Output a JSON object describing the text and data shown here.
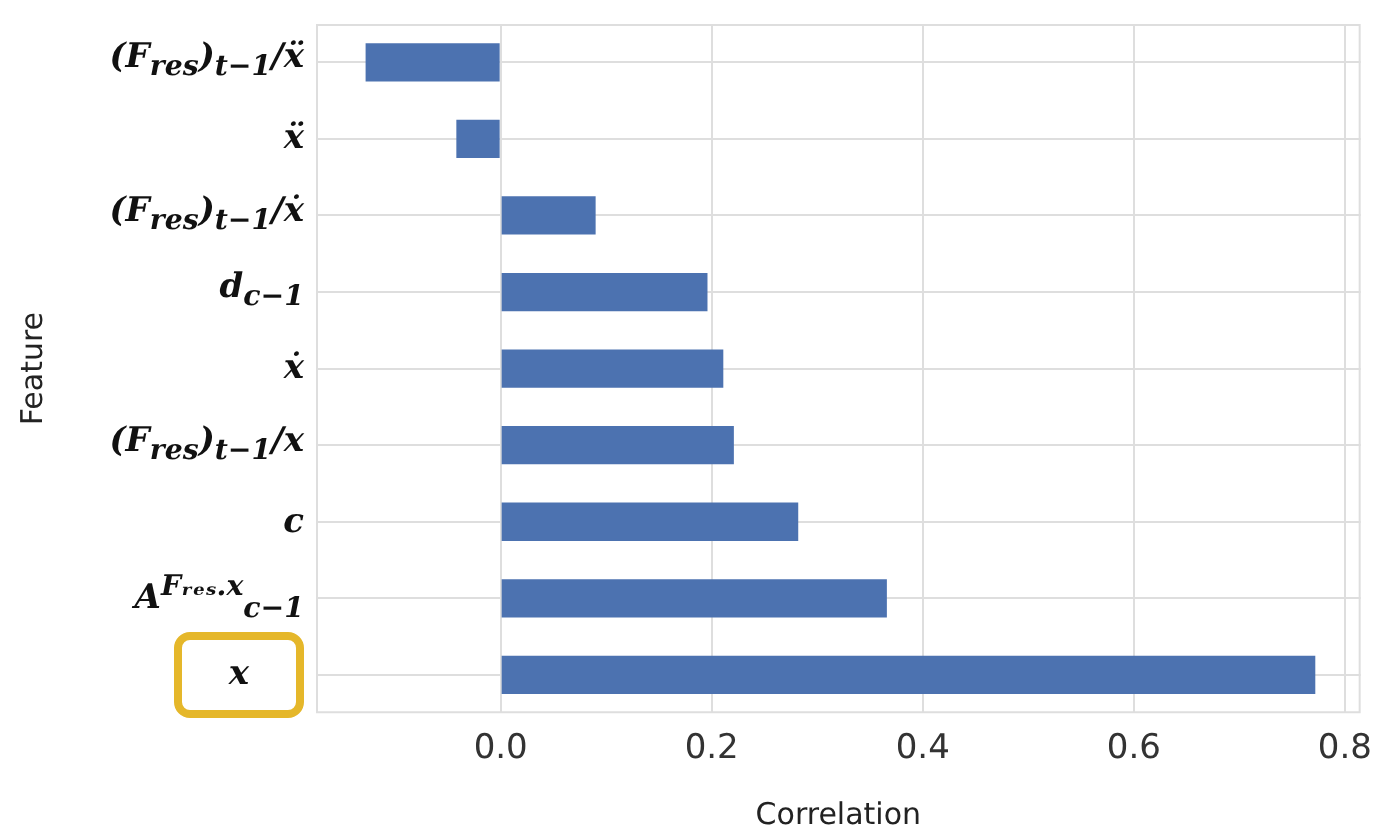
{
  "chart_data": {
    "type": "bar",
    "orientation": "horizontal",
    "categories": [
      "(F$_{res}$)$_{t−1}$/ẍ",
      "ẍ",
      "(F$_{res}$)$_{t−1}$/ẋ",
      "d$_{c−1}$",
      "ẋ",
      "(F$_{res}$)$_{t−1}$/x",
      "c",
      "A$^{Fᵣₑₛ.x}$$_{c−1}$",
      "x"
    ],
    "values": [
      -0.128,
      -0.042,
      0.09,
      0.196,
      0.211,
      0.221,
      0.282,
      0.366,
      0.772
    ],
    "color": "#4c72b0",
    "xlim": [
      -0.175,
      0.815
    ],
    "xticks": [
      {
        "value": 0,
        "label": "0.0"
      },
      0.2,
      0.4,
      0.6,
      0.8
    ],
    "xlabel": "Correlation",
    "ylabel": "Feature",
    "grid": true
  }
}
